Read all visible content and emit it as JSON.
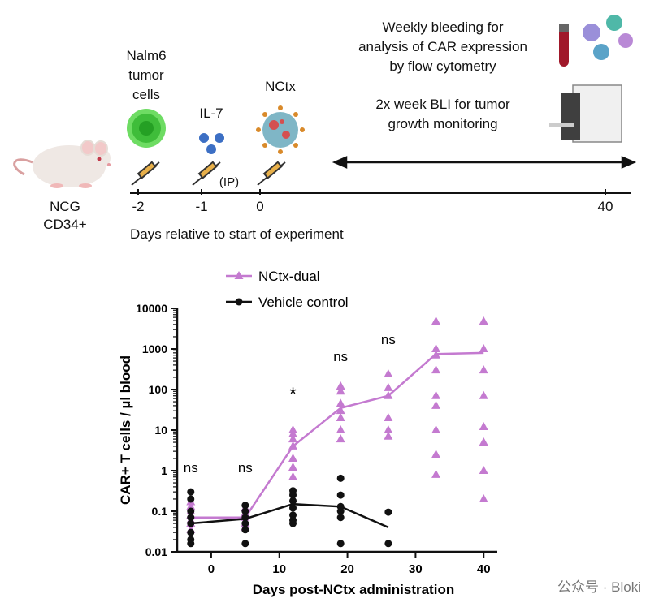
{
  "schematic": {
    "mouse_label_1": "NCG",
    "mouse_label_2": "CD34+",
    "tumor_label_1": "Nalm6",
    "tumor_label_2": "tumor",
    "tumor_label_3": "cells",
    "il7_label": "IL-7",
    "ip_label": "(IP)",
    "nctx_label": "NCtx",
    "bleed_line_1": "Weekly bleeding for",
    "bleed_line_2": "analysis of CAR expression",
    "bleed_line_3": "by flow cytometry",
    "bli_line_1": "2x week BLI for tumor",
    "bli_line_2": "growth monitoring",
    "timeline_ticks": [
      "-2",
      "-1",
      "0",
      "40"
    ],
    "timeline_caption": "Days relative to start of experiment",
    "colors": {
      "tumor": "#4cc94a",
      "il7": "#3c6fc4",
      "virus_body": "#7fb6c6",
      "virus_spike": "#d98a2a",
      "blood": "#a0182a",
      "instrument": "#4a4a4a"
    }
  },
  "chart_data": {
    "type": "scatter",
    "title": "",
    "xlabel": "Days post-NCtx administration",
    "ylabel": "CAR+ T cells / µl blood",
    "xlim": [
      -5,
      42
    ],
    "ylim": [
      0.01,
      10000
    ],
    "yscale": "log",
    "xticks": [
      "0",
      "10",
      "20",
      "30",
      "40"
    ],
    "yticks": [
      "0.01",
      "0.1",
      "1",
      "10",
      "100",
      "1000",
      "10000"
    ],
    "legend": [
      "NCtx-dual",
      "Vehicle control"
    ],
    "legend_position": "top-center",
    "annotations": [
      {
        "x": -3,
        "text": "ns"
      },
      {
        "x": 5,
        "text": "ns"
      },
      {
        "x": 12,
        "text": "*"
      },
      {
        "x": 19,
        "text": "ns"
      },
      {
        "x": 26,
        "text": "ns"
      }
    ],
    "series": [
      {
        "name": "NCtx-dual",
        "color": "#c47ad0",
        "marker": "triangle",
        "mean_x": [
          -3,
          5,
          12,
          19,
          26,
          33,
          40
        ],
        "mean_y": [
          0.07,
          0.07,
          4,
          35,
          70,
          750,
          800
        ],
        "points": [
          [
            -3,
            0.17
          ],
          [
            -3,
            0.13
          ],
          [
            -3,
            0.1
          ],
          [
            -3,
            0.08
          ],
          [
            -3,
            0.06
          ],
          [
            -3,
            0.05
          ],
          [
            -3,
            0.035
          ],
          [
            5,
            0.12
          ],
          [
            5,
            0.09
          ],
          [
            5,
            0.07
          ],
          [
            5,
            0.05
          ],
          [
            5,
            0.04
          ],
          [
            12,
            10
          ],
          [
            12,
            8
          ],
          [
            12,
            6
          ],
          [
            12,
            4
          ],
          [
            12,
            2
          ],
          [
            12,
            1.2
          ],
          [
            12,
            0.7
          ],
          [
            19,
            120
          ],
          [
            19,
            90
          ],
          [
            19,
            45
          ],
          [
            19,
            30
          ],
          [
            19,
            20
          ],
          [
            19,
            10
          ],
          [
            19,
            6
          ],
          [
            26,
            240
          ],
          [
            26,
            110
          ],
          [
            26,
            70
          ],
          [
            26,
            20
          ],
          [
            26,
            10
          ],
          [
            26,
            7
          ],
          [
            33,
            4800
          ],
          [
            33,
            1000
          ],
          [
            33,
            700
          ],
          [
            33,
            300
          ],
          [
            33,
            70
          ],
          [
            33,
            40
          ],
          [
            33,
            10
          ],
          [
            33,
            2.5
          ],
          [
            33,
            0.8
          ],
          [
            40,
            4800
          ],
          [
            40,
            1000
          ],
          [
            40,
            300
          ],
          [
            40,
            70
          ],
          [
            40,
            12
          ],
          [
            40,
            5
          ],
          [
            40,
            1
          ],
          [
            40,
            0.2
          ]
        ]
      },
      {
        "name": "Vehicle control",
        "color": "#111111",
        "marker": "circle",
        "mean_x": [
          -3,
          5,
          12,
          19,
          26
        ],
        "mean_y": [
          0.05,
          0.065,
          0.15,
          0.13,
          0.04
        ],
        "points": [
          [
            -3,
            0.3
          ],
          [
            -3,
            0.2
          ],
          [
            -3,
            0.1
          ],
          [
            -3,
            0.07
          ],
          [
            -3,
            0.05
          ],
          [
            -3,
            0.03
          ],
          [
            -3,
            0.02
          ],
          [
            -3,
            0.016
          ],
          [
            5,
            0.14
          ],
          [
            5,
            0.1
          ],
          [
            5,
            0.07
          ],
          [
            5,
            0.05
          ],
          [
            5,
            0.035
          ],
          [
            5,
            0.016
          ],
          [
            12,
            0.32
          ],
          [
            12,
            0.25
          ],
          [
            12,
            0.18
          ],
          [
            12,
            0.12
          ],
          [
            12,
            0.08
          ],
          [
            12,
            0.06
          ],
          [
            12,
            0.05
          ],
          [
            19,
            0.65
          ],
          [
            19,
            0.25
          ],
          [
            19,
            0.13
          ],
          [
            19,
            0.1
          ],
          [
            19,
            0.07
          ],
          [
            19,
            0.016
          ],
          [
            26,
            0.095
          ],
          [
            26,
            0.016
          ]
        ]
      }
    ]
  },
  "watermark": "公众号 · Bloki"
}
